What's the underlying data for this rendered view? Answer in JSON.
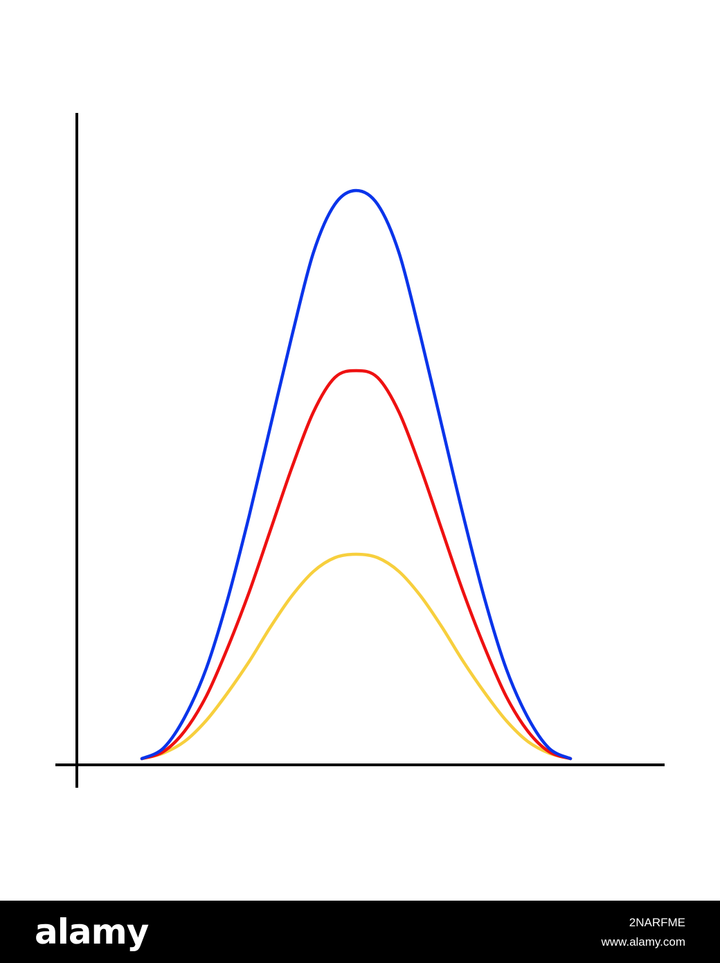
{
  "chart_data": {
    "type": "line",
    "title": "",
    "xlabel": "",
    "ylabel": "",
    "grid": false,
    "legend": "none",
    "xlim": [
      0,
      1
    ],
    "ylim": [
      0,
      1
    ],
    "x": [
      0.0,
      0.05,
      0.1,
      0.15,
      0.2,
      0.25,
      0.3,
      0.35,
      0.4,
      0.45,
      0.5,
      0.55,
      0.6,
      0.65,
      0.7,
      0.75,
      0.8,
      0.85,
      0.9,
      0.95,
      1.0
    ],
    "series": [
      {
        "color": "#0a34ea",
        "values": [
          0.0,
          0.015,
          0.06,
          0.13,
          0.23,
          0.35,
          0.48,
          0.61,
          0.73,
          0.8,
          0.82,
          0.8,
          0.73,
          0.61,
          0.48,
          0.35,
          0.23,
          0.13,
          0.06,
          0.015,
          0.0
        ]
      },
      {
        "color": "#ee1111",
        "values": [
          0.0,
          0.01,
          0.04,
          0.09,
          0.16,
          0.24,
          0.33,
          0.42,
          0.5,
          0.55,
          0.56,
          0.55,
          0.5,
          0.42,
          0.33,
          0.24,
          0.16,
          0.09,
          0.04,
          0.01,
          0.0
        ]
      },
      {
        "color": "#f7cf3d",
        "values": [
          0.0,
          0.008,
          0.025,
          0.055,
          0.095,
          0.14,
          0.19,
          0.235,
          0.27,
          0.29,
          0.295,
          0.29,
          0.27,
          0.235,
          0.19,
          0.14,
          0.095,
          0.055,
          0.025,
          0.008,
          0.0
        ]
      }
    ]
  },
  "watermark": {
    "brand": "alamy",
    "image_id": "2NARFME",
    "site_url": "www.alamy.com"
  }
}
